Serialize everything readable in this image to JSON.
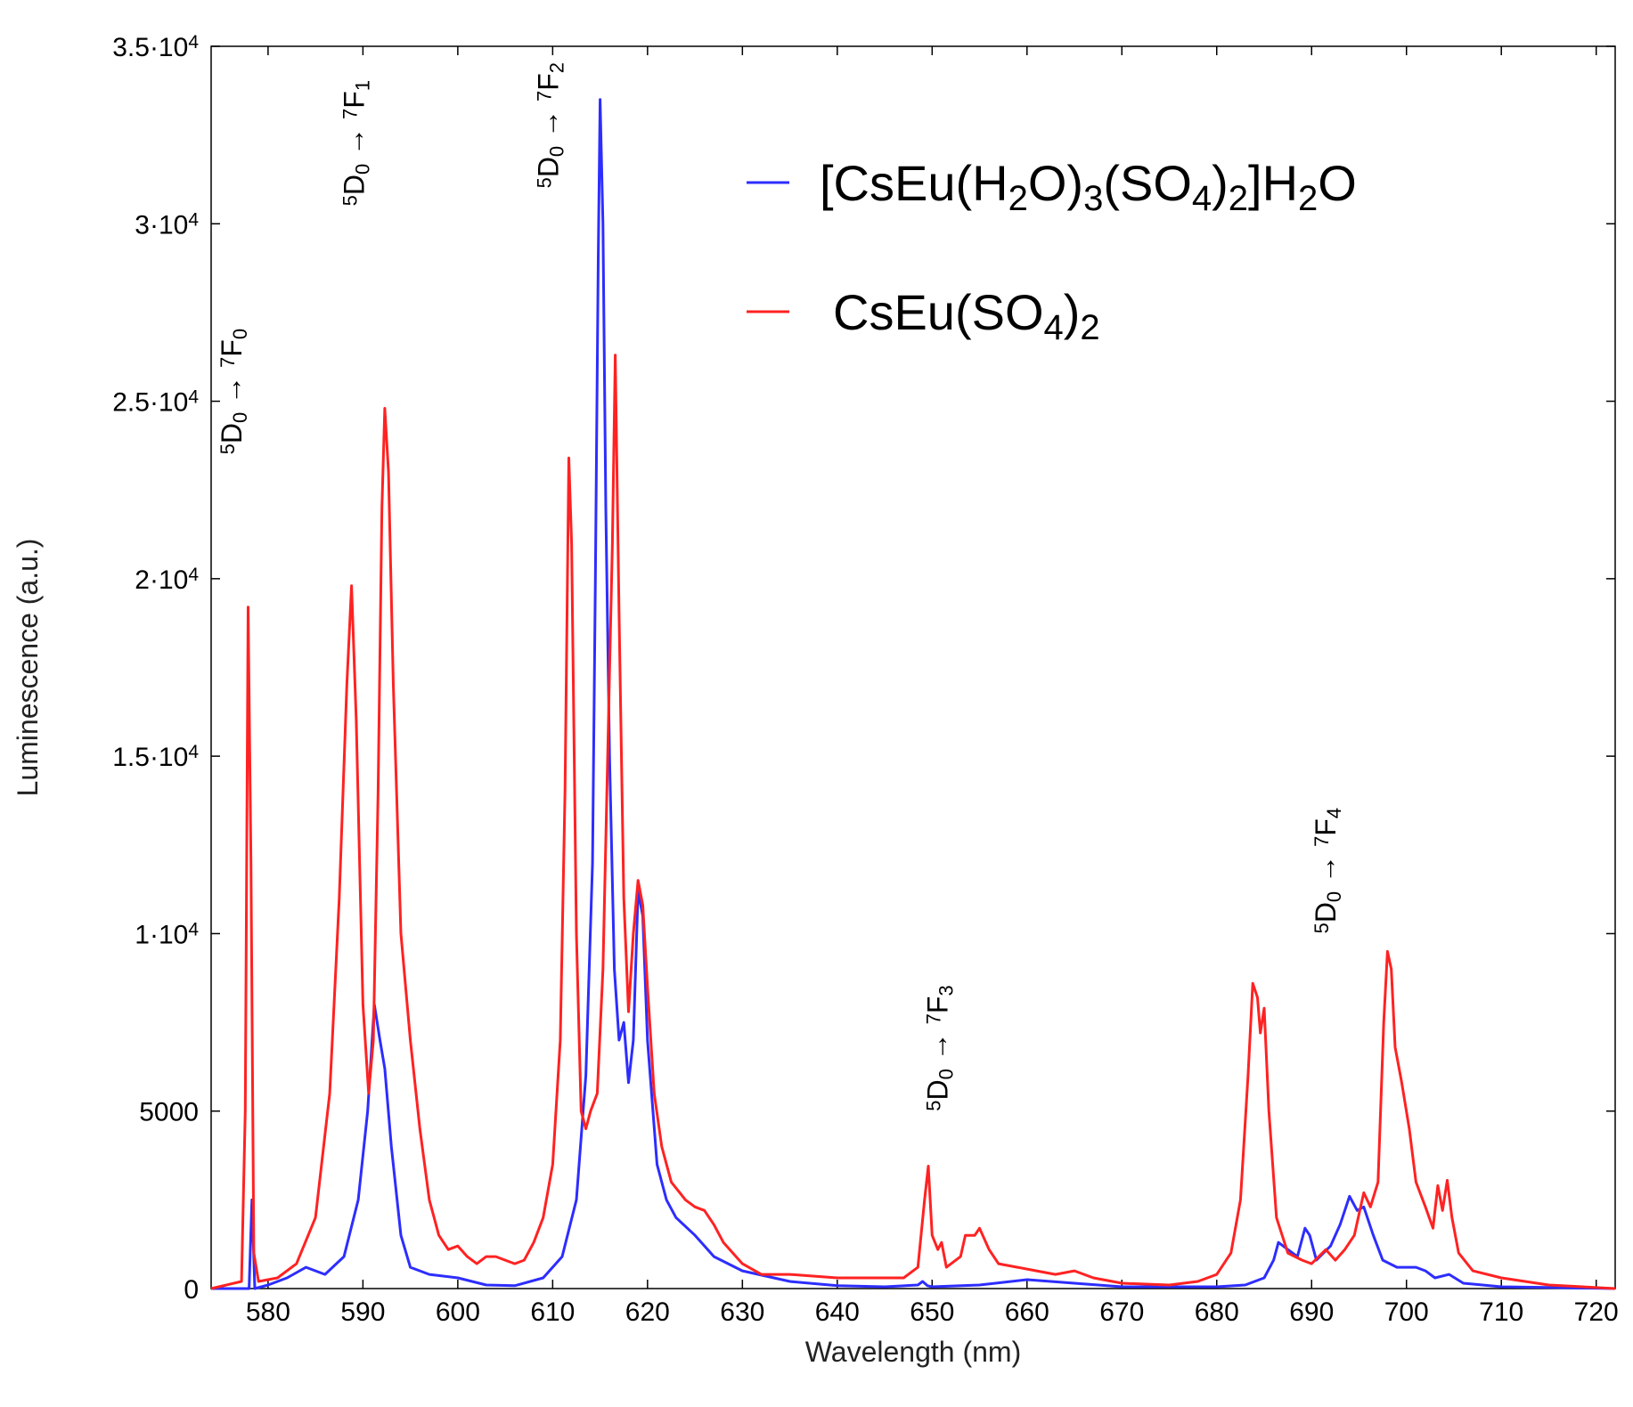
{
  "chart_data": {
    "type": "line",
    "xlabel": "Wavelength (nm)",
    "ylabel": "Luminescence (a.u.)",
    "xlim": [
      574,
      722
    ],
    "ylim": [
      0,
      35000
    ],
    "xticks": [
      580,
      590,
      600,
      610,
      620,
      630,
      640,
      650,
      660,
      670,
      680,
      690,
      700,
      710,
      720
    ],
    "xtick_labels": [
      "580",
      "590",
      "600",
      "610",
      "620",
      "630",
      "640",
      "650",
      "660",
      "670",
      "680",
      "690",
      "700",
      "710",
      "720"
    ],
    "yticks": [
      0,
      5000,
      10000,
      15000,
      20000,
      25000,
      30000,
      35000
    ],
    "ytick_labels": [
      {
        "text": "0"
      },
      {
        "text": "5000"
      },
      {
        "mant": "1",
        "exp": "4"
      },
      {
        "mant": "1.5",
        "exp": "4"
      },
      {
        "mant": "2",
        "exp": "4"
      },
      {
        "mant": "2.5",
        "exp": "4"
      },
      {
        "mant": "3",
        "exp": "4"
      },
      {
        "mant": "3.5",
        "exp": "4"
      }
    ],
    "legend_position": "top-right",
    "series": [
      {
        "name": "[CsEu(H2O)3(SO4)2]H2O",
        "legend": [
          {
            "t": "[CsEu(H",
            "s": ""
          },
          {
            "t": "2",
            "s": "sub"
          },
          {
            "t": "O)",
            "s": ""
          },
          {
            "t": "3",
            "s": "sub"
          },
          {
            "t": "(SO",
            "s": ""
          },
          {
            "t": "4",
            "s": "sub"
          },
          {
            "t": ")",
            "s": ""
          },
          {
            "t": "2",
            "s": "sub"
          },
          {
            "t": "]H",
            "s": ""
          },
          {
            "t": "2",
            "s": "sub"
          },
          {
            "t": "O",
            "s": ""
          }
        ],
        "color": "#2d2dff",
        "points": [
          [
            574,
            0
          ],
          [
            578,
            0
          ],
          [
            578.3,
            2500
          ],
          [
            578.6,
            0
          ],
          [
            580,
            100
          ],
          [
            582,
            300
          ],
          [
            584,
            600
          ],
          [
            585,
            500
          ],
          [
            586,
            400
          ],
          [
            588,
            900
          ],
          [
            589.5,
            2500
          ],
          [
            590.5,
            5000
          ],
          [
            591.2,
            8000
          ],
          [
            591.8,
            7000
          ],
          [
            592.3,
            6200
          ],
          [
            593,
            4000
          ],
          [
            594,
            1500
          ],
          [
            595,
            600
          ],
          [
            597,
            400
          ],
          [
            600,
            300
          ],
          [
            603,
            100
          ],
          [
            606,
            80
          ],
          [
            609,
            300
          ],
          [
            611,
            900
          ],
          [
            612.5,
            2500
          ],
          [
            613.5,
            6000
          ],
          [
            614.2,
            12000
          ],
          [
            614.5,
            20000
          ],
          [
            614.8,
            29000
          ],
          [
            615,
            33500
          ],
          [
            615.3,
            30000
          ],
          [
            615.6,
            22000
          ],
          [
            616,
            15000
          ],
          [
            616.5,
            9000
          ],
          [
            617,
            7000
          ],
          [
            617.5,
            7500
          ],
          [
            618,
            5800
          ],
          [
            618.5,
            7000
          ],
          [
            619,
            11200
          ],
          [
            619.5,
            10500
          ],
          [
            620,
            7000
          ],
          [
            621,
            3500
          ],
          [
            622,
            2500
          ],
          [
            623,
            2000
          ],
          [
            625,
            1500
          ],
          [
            627,
            900
          ],
          [
            630,
            500
          ],
          [
            635,
            200
          ],
          [
            640,
            80
          ],
          [
            645,
            50
          ],
          [
            648.5,
            100
          ],
          [
            649,
            200
          ],
          [
            649.5,
            80
          ],
          [
            650,
            50
          ],
          [
            655,
            100
          ],
          [
            660,
            250
          ],
          [
            665,
            150
          ],
          [
            670,
            50
          ],
          [
            675,
            50
          ],
          [
            680,
            50
          ],
          [
            683,
            100
          ],
          [
            685,
            300
          ],
          [
            686,
            800
          ],
          [
            686.5,
            1300
          ],
          [
            687.5,
            1100
          ],
          [
            688.5,
            900
          ],
          [
            689.3,
            1700
          ],
          [
            689.8,
            1500
          ],
          [
            690.5,
            800
          ],
          [
            692,
            1200
          ],
          [
            693,
            1800
          ],
          [
            694,
            2600
          ],
          [
            694.8,
            2200
          ],
          [
            695.5,
            2300
          ],
          [
            696.5,
            1500
          ],
          [
            697.5,
            800
          ],
          [
            699,
            600
          ],
          [
            701,
            600
          ],
          [
            702,
            500
          ],
          [
            703,
            300
          ],
          [
            704.5,
            400
          ],
          [
            706,
            150
          ],
          [
            710,
            50
          ],
          [
            715,
            30
          ],
          [
            722,
            0
          ]
        ]
      },
      {
        "name": "CsEu(SO4)2",
        "legend": [
          {
            "t": "CsEu(SO",
            "s": ""
          },
          {
            "t": "4",
            "s": "sub"
          },
          {
            "t": ")",
            "s": ""
          },
          {
            "t": "2",
            "s": "sub"
          }
        ],
        "color": "#ff2222",
        "points": [
          [
            574,
            0
          ],
          [
            577.2,
            200
          ],
          [
            577.6,
            5000
          ],
          [
            577.9,
            19200
          ],
          [
            578.2,
            12000
          ],
          [
            578.5,
            1000
          ],
          [
            579,
            200
          ],
          [
            581,
            300
          ],
          [
            583,
            700
          ],
          [
            585,
            2000
          ],
          [
            586.5,
            5500
          ],
          [
            587.5,
            11000
          ],
          [
            588.3,
            17000
          ],
          [
            588.8,
            19800
          ],
          [
            589.3,
            16000
          ],
          [
            590,
            8000
          ],
          [
            590.6,
            5500
          ],
          [
            591.1,
            7000
          ],
          [
            591.6,
            14000
          ],
          [
            592,
            22000
          ],
          [
            592.3,
            24800
          ],
          [
            592.7,
            23000
          ],
          [
            593.2,
            17000
          ],
          [
            594,
            10000
          ],
          [
            595,
            7000
          ],
          [
            596,
            4500
          ],
          [
            597,
            2500
          ],
          [
            598,
            1500
          ],
          [
            599,
            1100
          ],
          [
            600,
            1200
          ],
          [
            601,
            900
          ],
          [
            602,
            700
          ],
          [
            603,
            900
          ],
          [
            604,
            900
          ],
          [
            605,
            800
          ],
          [
            606,
            700
          ],
          [
            607,
            800
          ],
          [
            608,
            1300
          ],
          [
            609,
            2000
          ],
          [
            610,
            3500
          ],
          [
            610.8,
            7000
          ],
          [
            611.3,
            14000
          ],
          [
            611.7,
            23400
          ],
          [
            612,
            21000
          ],
          [
            612.5,
            10000
          ],
          [
            613,
            5000
          ],
          [
            613.5,
            4500
          ],
          [
            614,
            5000
          ],
          [
            614.7,
            5500
          ],
          [
            615.3,
            9000
          ],
          [
            615.8,
            15000
          ],
          [
            616.3,
            21000
          ],
          [
            616.6,
            26300
          ],
          [
            617,
            19000
          ],
          [
            617.5,
            11000
          ],
          [
            618,
            7800
          ],
          [
            618.5,
            10000
          ],
          [
            619,
            11500
          ],
          [
            619.5,
            10800
          ],
          [
            620,
            8500
          ],
          [
            620.7,
            5500
          ],
          [
            621.5,
            4000
          ],
          [
            622.5,
            3000
          ],
          [
            624,
            2500
          ],
          [
            625,
            2300
          ],
          [
            626,
            2200
          ],
          [
            627,
            1800
          ],
          [
            628,
            1300
          ],
          [
            630,
            700
          ],
          [
            632,
            400
          ],
          [
            635,
            400
          ],
          [
            640,
            300
          ],
          [
            645,
            300
          ],
          [
            647,
            300
          ],
          [
            648.5,
            600
          ],
          [
            649.2,
            2500
          ],
          [
            649.6,
            3450
          ],
          [
            650,
            1500
          ],
          [
            650.6,
            1100
          ],
          [
            651,
            1300
          ],
          [
            651.5,
            600
          ],
          [
            653,
            900
          ],
          [
            653.5,
            1500
          ],
          [
            654.5,
            1500
          ],
          [
            655,
            1700
          ],
          [
            656,
            1100
          ],
          [
            657,
            700
          ],
          [
            659,
            600
          ],
          [
            661,
            500
          ],
          [
            663,
            400
          ],
          [
            665,
            500
          ],
          [
            667,
            300
          ],
          [
            670,
            150
          ],
          [
            675,
            100
          ],
          [
            678,
            200
          ],
          [
            680,
            400
          ],
          [
            681.5,
            1000
          ],
          [
            682.5,
            2500
          ],
          [
            683.3,
            6000
          ],
          [
            683.8,
            8600
          ],
          [
            684.3,
            8200
          ],
          [
            684.6,
            7200
          ],
          [
            685,
            7900
          ],
          [
            685.5,
            5000
          ],
          [
            686.3,
            2000
          ],
          [
            687.5,
            1000
          ],
          [
            689,
            800
          ],
          [
            690,
            700
          ],
          [
            691.5,
            1100
          ],
          [
            692.5,
            800
          ],
          [
            693.5,
            1100
          ],
          [
            694.5,
            1500
          ],
          [
            695.5,
            2700
          ],
          [
            696.2,
            2300
          ],
          [
            697,
            3000
          ],
          [
            697.6,
            7500
          ],
          [
            698,
            9500
          ],
          [
            698.4,
            9000
          ],
          [
            698.8,
            6800
          ],
          [
            699.5,
            5800
          ],
          [
            700.3,
            4500
          ],
          [
            701,
            3000
          ],
          [
            702,
            2300
          ],
          [
            702.8,
            1700
          ],
          [
            703.3,
            2900
          ],
          [
            703.8,
            2200
          ],
          [
            704.3,
            3050
          ],
          [
            704.8,
            2000
          ],
          [
            705.5,
            1000
          ],
          [
            707,
            500
          ],
          [
            710,
            300
          ],
          [
            715,
            100
          ],
          [
            722,
            0
          ]
        ]
      }
    ],
    "annotations": [
      {
        "x": 577.2,
        "y": 23500,
        "parts": [
          {
            "t": "5",
            "s": "sup"
          },
          {
            "t": "D",
            "s": ""
          },
          {
            "t": "0",
            "s": "sub"
          },
          {
            "t": " → ",
            "s": ""
          },
          {
            "t": "7",
            "s": "sup"
          },
          {
            "t": "F",
            "s": ""
          },
          {
            "t": "0",
            "s": "sub"
          }
        ]
      },
      {
        "x": 590.1,
        "y": 30500,
        "parts": [
          {
            "t": "5",
            "s": "sup"
          },
          {
            "t": "D",
            "s": ""
          },
          {
            "t": "0",
            "s": "sub"
          },
          {
            "t": " → ",
            "s": ""
          },
          {
            "t": "7",
            "s": "sup"
          },
          {
            "t": "F",
            "s": ""
          },
          {
            "t": "1",
            "s": "sub"
          }
        ]
      },
      {
        "x": 610.6,
        "y": 31000,
        "parts": [
          {
            "t": "5",
            "s": "sup"
          },
          {
            "t": "D",
            "s": ""
          },
          {
            "t": "0",
            "s": "sub"
          },
          {
            "t": " → ",
            "s": ""
          },
          {
            "t": "7",
            "s": "sup"
          },
          {
            "t": "F",
            "s": ""
          },
          {
            "t": "2",
            "s": "sub"
          }
        ]
      },
      {
        "x": 651.6,
        "y": 5000,
        "parts": [
          {
            "t": "5",
            "s": "sup"
          },
          {
            "t": "D",
            "s": ""
          },
          {
            "t": "0",
            "s": "sub"
          },
          {
            "t": " → ",
            "s": ""
          },
          {
            "t": "7",
            "s": "sup"
          },
          {
            "t": "F",
            "s": ""
          },
          {
            "t": "3",
            "s": "sub"
          }
        ]
      },
      {
        "x": 692.5,
        "y": 10000,
        "parts": [
          {
            "t": "5",
            "s": "sup"
          },
          {
            "t": "D",
            "s": ""
          },
          {
            "t": "0",
            "s": "sub"
          },
          {
            "t": " → ",
            "s": ""
          },
          {
            "t": "7",
            "s": "sup"
          },
          {
            "t": "F",
            "s": ""
          },
          {
            "t": "4",
            "s": "sub"
          }
        ]
      }
    ]
  }
}
